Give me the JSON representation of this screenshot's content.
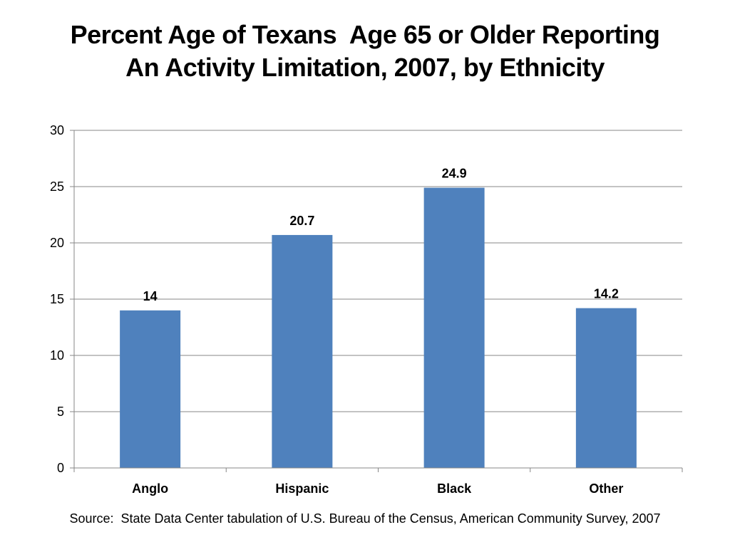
{
  "chart_data": {
    "type": "bar",
    "title_lines": [
      "Percent Age of Texans  Age 65 or Older Reporting",
      "An Activity Limitation, 2007, by Ethnicity"
    ],
    "categories": [
      "Anglo",
      "Hispanic",
      "Black",
      "Other"
    ],
    "values": [
      14,
      20.7,
      24.9,
      14.2
    ],
    "data_labels": [
      "14",
      "20.7",
      "24.9",
      "14.2"
    ],
    "ylim": [
      0,
      30
    ],
    "yticks": [
      0,
      5,
      10,
      15,
      20,
      25,
      30
    ],
    "grid": true,
    "legend": "none",
    "bar_color": "#4F81BD",
    "gridline_color": "#878787"
  },
  "source": "Source:  State Data Center tabulation of U.S. Bureau of the Census, American Community Survey, 2007"
}
